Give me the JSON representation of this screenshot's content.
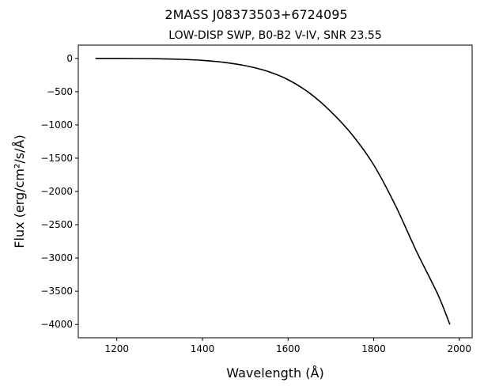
{
  "chart_data": {
    "type": "line",
    "title": "2MASS J08373503+6724095",
    "subtitle": "LOW-DISP SWP, B0-B2 V-IV, SNR 23.55",
    "xlabel": "Wavelength (Å)",
    "ylabel": "Flux (erg/cm²/s/Å)",
    "xlim": [
      1110,
      2030
    ],
    "ylim": [
      -4200,
      200
    ],
    "xticks": [
      1200,
      1400,
      1600,
      1800,
      2000
    ],
    "yticks": [
      0,
      -500,
      -1000,
      -1500,
      -2000,
      -2500,
      -3000,
      -3500,
      -4000
    ],
    "xtick_labels": [
      "1200",
      "1400",
      "1600",
      "1800",
      "2000"
    ],
    "ytick_labels": [
      "0",
      "−500",
      "−1000",
      "−1500",
      "−2000",
      "−2500",
      "−3000",
      "−3500",
      "−4000"
    ],
    "grid": false,
    "series": [
      {
        "color": "#000000",
        "x": [
          1150,
          1200,
          1250,
          1300,
          1350,
          1400,
          1450,
          1500,
          1550,
          1600,
          1650,
          1700,
          1750,
          1800,
          1850,
          1900,
          1950,
          1978
        ],
        "y": [
          0,
          0,
          -2,
          -6,
          -14,
          -30,
          -59,
          -109,
          -190,
          -320,
          -520,
          -800,
          -1150,
          -1600,
          -2200,
          -2900,
          -3550,
          -4000
        ]
      }
    ]
  }
}
